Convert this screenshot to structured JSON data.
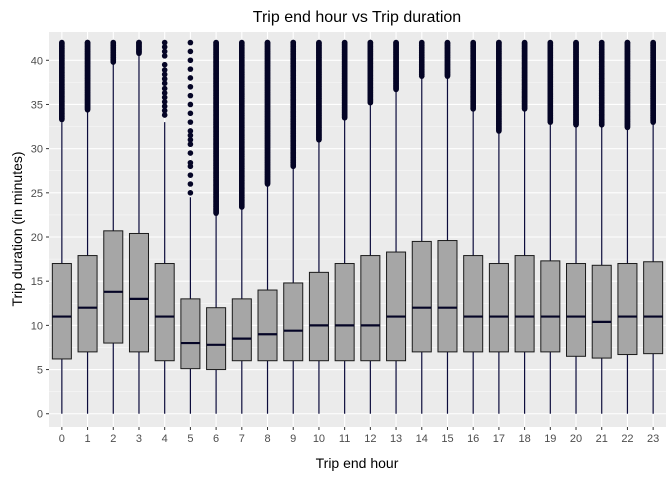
{
  "chart_data": {
    "type": "boxplot",
    "title": "Trip end hour vs Trip duration",
    "xlabel": "Trip end hour",
    "ylabel": "Trip duration (in minutes)",
    "ylim": [
      -1.5,
      43.2
    ],
    "yticks": [
      0,
      5,
      10,
      15,
      20,
      25,
      30,
      35,
      40
    ],
    "grid": true,
    "legend": "none",
    "categories": [
      "0",
      "1",
      "2",
      "3",
      "4",
      "5",
      "6",
      "7",
      "8",
      "9",
      "10",
      "11",
      "12",
      "13",
      "14",
      "15",
      "16",
      "17",
      "18",
      "19",
      "20",
      "21",
      "22",
      "23"
    ],
    "boxes": [
      {
        "whisker_low": 0,
        "q1": 6.2,
        "median": 11.0,
        "q3": 17.0,
        "whisker_high": 33.0,
        "outliers_from": 33.3,
        "outliers_to": 42.0
      },
      {
        "whisker_low": 0,
        "q1": 7.0,
        "median": 12.0,
        "q3": 17.9,
        "whisker_high": 34.2,
        "outliers_from": 34.4,
        "outliers_to": 42.0
      },
      {
        "whisker_low": 0,
        "q1": 8.0,
        "median": 13.8,
        "q3": 20.7,
        "whisker_high": 39.6,
        "outliers_from": 39.8,
        "outliers_to": 42.0
      },
      {
        "whisker_low": 0,
        "q1": 7.0,
        "median": 13.0,
        "q3": 20.4,
        "whisker_high": 40.6,
        "outliers_from": 40.8,
        "outliers_to": 42.0
      },
      {
        "whisker_low": 0,
        "q1": 6.0,
        "median": 11.0,
        "q3": 17.0,
        "whisker_high": 33.0,
        "outlier_points": [
          33.8,
          34.3,
          34.8,
          35.3,
          35.8,
          36.3,
          36.8,
          37.4,
          37.9,
          38.4,
          38.9,
          39.5,
          40.5,
          41.0,
          41.5,
          42.0
        ]
      },
      {
        "whisker_low": 0,
        "q1": 5.1,
        "median": 8.0,
        "q3": 13.0,
        "whisker_high": 24.5,
        "outlier_points": [
          25.0,
          26.0,
          27.0,
          28.0,
          28.4,
          29.5,
          30.5,
          31.0,
          31.5,
          32.0,
          33.0,
          34.0,
          35.0,
          36.0,
          37.0,
          38.0,
          39.0,
          40.0,
          41.0,
          42.0
        ]
      },
      {
        "whisker_low": 0,
        "q1": 5.0,
        "median": 7.8,
        "q3": 12.0,
        "whisker_high": 22.5,
        "outliers_from": 22.7,
        "outliers_to": 42.0
      },
      {
        "whisker_low": 0,
        "q1": 6.0,
        "median": 8.5,
        "q3": 13.0,
        "whisker_high": 23.2,
        "outliers_from": 23.4,
        "outliers_to": 42.0
      },
      {
        "whisker_low": 0,
        "q1": 6.0,
        "median": 9.0,
        "q3": 14.0,
        "whisker_high": 25.8,
        "outliers_from": 26.0,
        "outliers_to": 42.0
      },
      {
        "whisker_low": 0,
        "q1": 6.0,
        "median": 9.4,
        "q3": 14.8,
        "whisker_high": 27.8,
        "outliers_from": 28.0,
        "outliers_to": 42.0
      },
      {
        "whisker_low": 0,
        "q1": 6.0,
        "median": 10.0,
        "q3": 16.0,
        "whisker_high": 30.8,
        "outliers_from": 31.0,
        "outliers_to": 42.0
      },
      {
        "whisker_low": 0,
        "q1": 6.0,
        "median": 10.0,
        "q3": 17.0,
        "whisker_high": 33.3,
        "outliers_from": 33.5,
        "outliers_to": 42.0
      },
      {
        "whisker_low": 0,
        "q1": 6.0,
        "median": 10.0,
        "q3": 17.9,
        "whisker_high": 35.0,
        "outliers_from": 35.2,
        "outliers_to": 42.0
      },
      {
        "whisker_low": 0,
        "q1": 6.0,
        "median": 11.0,
        "q3": 18.3,
        "whisker_high": 36.5,
        "outliers_from": 36.7,
        "outliers_to": 42.0
      },
      {
        "whisker_low": 0,
        "q1": 7.0,
        "median": 12.0,
        "q3": 19.5,
        "whisker_high": 38.0,
        "outliers_from": 38.2,
        "outliers_to": 42.0
      },
      {
        "whisker_low": 0,
        "q1": 7.0,
        "median": 12.0,
        "q3": 19.6,
        "whisker_high": 38.0,
        "outliers_from": 38.2,
        "outliers_to": 42.0
      },
      {
        "whisker_low": 0,
        "q1": 7.0,
        "median": 11.0,
        "q3": 17.9,
        "whisker_high": 34.3,
        "outliers_from": 34.5,
        "outliers_to": 42.0
      },
      {
        "whisker_low": 0,
        "q1": 7.0,
        "median": 11.0,
        "q3": 17.0,
        "whisker_high": 31.8,
        "outliers_from": 32.0,
        "outliers_to": 42.0
      },
      {
        "whisker_low": 0,
        "q1": 7.0,
        "median": 11.0,
        "q3": 17.9,
        "whisker_high": 34.3,
        "outliers_from": 34.5,
        "outliers_to": 42.0
      },
      {
        "whisker_low": 0,
        "q1": 7.0,
        "median": 11.0,
        "q3": 17.3,
        "whisker_high": 32.8,
        "outliers_from": 33.0,
        "outliers_to": 42.0
      },
      {
        "whisker_low": 0,
        "q1": 6.5,
        "median": 11.0,
        "q3": 17.0,
        "whisker_high": 32.5,
        "outliers_from": 32.7,
        "outliers_to": 42.0
      },
      {
        "whisker_low": 0,
        "q1": 6.3,
        "median": 10.4,
        "q3": 16.8,
        "whisker_high": 32.5,
        "outliers_from": 32.7,
        "outliers_to": 42.0
      },
      {
        "whisker_low": 0,
        "q1": 6.7,
        "median": 11.0,
        "q3": 17.0,
        "whisker_high": 32.2,
        "outliers_from": 32.4,
        "outliers_to": 42.0
      },
      {
        "whisker_low": 0,
        "q1": 6.8,
        "median": 11.0,
        "q3": 17.2,
        "whisker_high": 32.8,
        "outliers_from": 33.0,
        "outliers_to": 42.0
      }
    ],
    "colors": {
      "panel_background": "#ebebeb",
      "grid_major": "#ffffff",
      "box_fill": "#a6a6a6",
      "box_outline": "#1a1a1a",
      "whisker": "#0b0b3b",
      "median": "#050526",
      "outlier": "#050526",
      "tick_text": "#4d4d4d"
    }
  }
}
